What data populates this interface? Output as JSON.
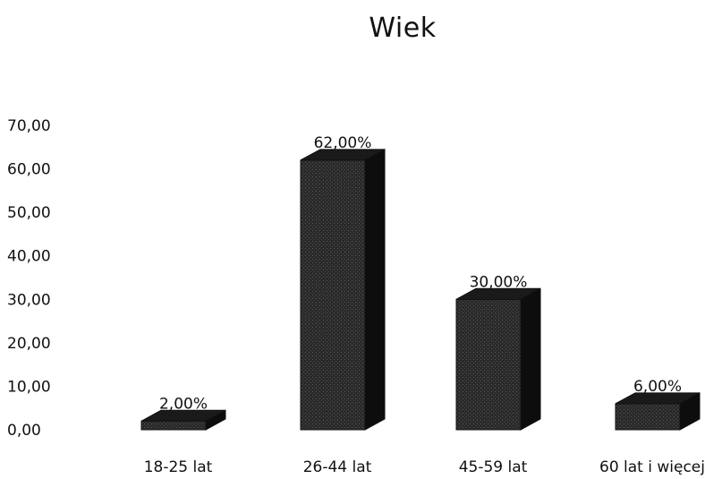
{
  "chart_data": {
    "type": "bar",
    "title": "Wiek",
    "categories": [
      "18-25 lat",
      "26-44 lat",
      "45-59 lat",
      "60 lat i więcej"
    ],
    "values": [
      2,
      62,
      30,
      6
    ],
    "data_labels": [
      "2,00%",
      "62,00%",
      "30,00%",
      "6,00%"
    ],
    "ylim": [
      0,
      70
    ],
    "yticks": [
      "0,00",
      "10,00",
      "20,00",
      "30,00",
      "40,00",
      "50,00",
      "60,00",
      "70,00"
    ],
    "grid": false,
    "legend": "none",
    "bar_color": "#2a2a2a"
  }
}
